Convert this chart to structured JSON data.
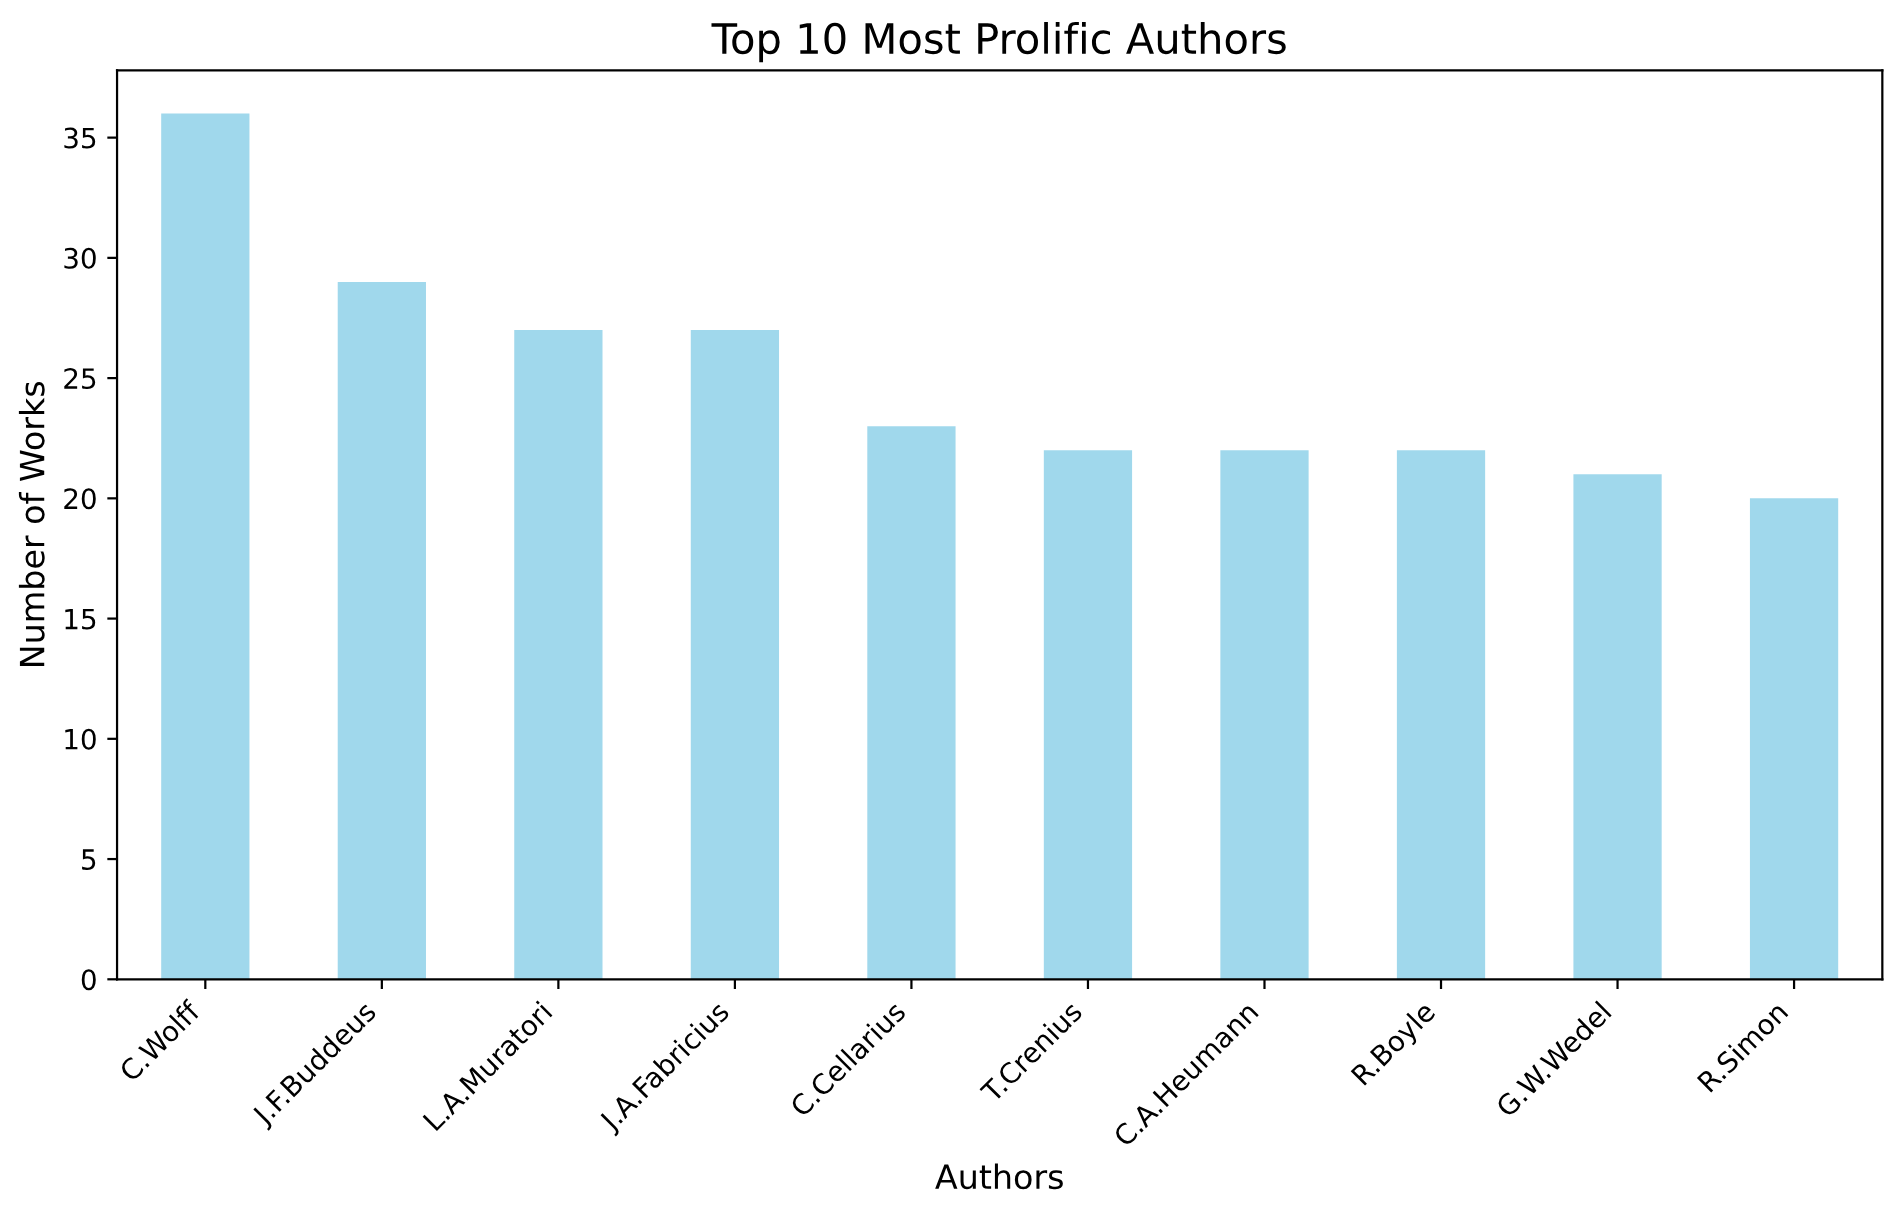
{
  "chart_data": {
    "type": "bar",
    "title": "Top 10 Most Prolific Authors",
    "xlabel": "Authors",
    "ylabel": "Number of Works",
    "categories": [
      "C.Wolff",
      "J.F.Buddeus",
      "L.A.Muratori",
      "J.A.Fabricius",
      "C.Cellarius",
      "T.Crenius",
      "C.A.Heumann",
      "R.Boyle",
      "G.W.Wedel",
      "R.Simon"
    ],
    "values": [
      36,
      29,
      27,
      27,
      23,
      22,
      22,
      22,
      21,
      20
    ],
    "color": "#a0d8ec",
    "ylim": [
      0,
      37.8
    ],
    "yticks": [
      0,
      5,
      10,
      15,
      20,
      25,
      30,
      35
    ],
    "grid": false,
    "legend": false
  }
}
